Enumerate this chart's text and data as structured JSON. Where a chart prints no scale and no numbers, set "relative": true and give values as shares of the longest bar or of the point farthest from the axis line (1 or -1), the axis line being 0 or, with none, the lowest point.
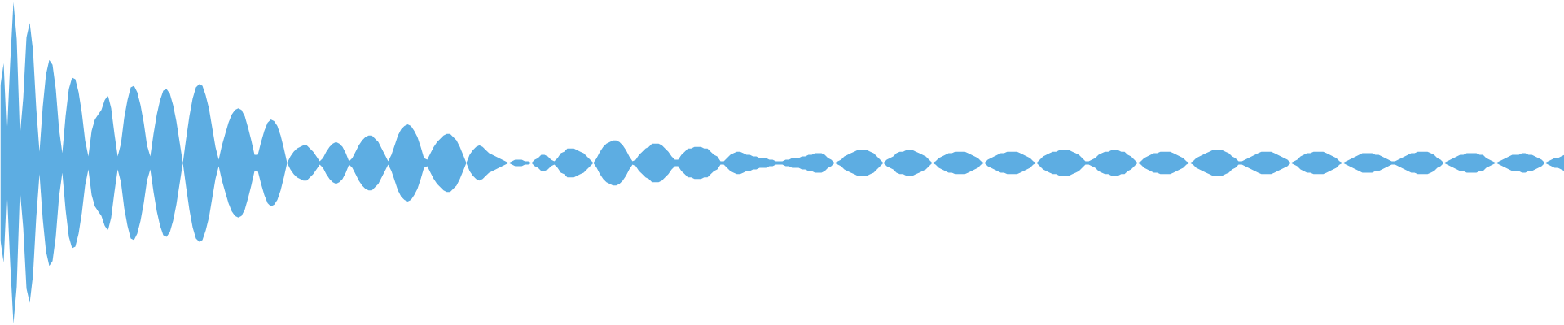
{
  "chart_data": {
    "type": "area",
    "relative": true,
    "ref_lines": [
      {
        "axis": "y",
        "value": 0,
        "color": "#5dade2"
      }
    ],
    "categories": [
      null,
      null,
      null,
      null,
      null,
      null,
      null,
      null,
      null,
      null,
      null,
      null,
      null,
      null,
      null,
      null,
      null,
      null,
      null,
      null,
      null,
      null,
      null,
      null,
      null,
      null,
      null,
      null,
      null,
      null,
      null,
      null,
      null,
      null,
      null,
      null,
      null,
      null,
      null,
      null,
      null,
      null,
      null,
      null,
      null,
      null,
      null,
      null,
      null,
      null,
      null,
      null,
      null,
      null,
      null,
      null,
      null,
      null,
      null,
      null,
      null,
      null,
      null,
      null,
      null,
      null,
      null,
      null,
      null,
      null,
      null,
      null,
      null,
      null,
      null,
      null,
      null,
      null,
      null,
      null,
      null,
      null,
      null,
      null,
      null,
      null,
      null,
      null,
      null,
      null,
      null,
      null,
      null,
      null,
      null,
      null,
      null,
      null,
      null,
      null,
      null,
      null,
      null,
      null,
      null,
      null,
      null,
      null,
      null,
      null,
      null,
      null,
      null,
      null,
      null,
      null,
      null,
      null,
      null,
      null,
      null,
      null,
      null,
      null,
      null,
      null,
      null,
      null,
      null,
      null,
      null,
      null,
      null,
      null,
      null,
      null,
      null,
      null,
      null,
      null,
      null,
      null,
      null,
      null,
      null,
      null,
      null,
      null,
      null,
      null,
      null,
      null,
      null,
      null,
      null,
      null,
      null,
      null,
      null,
      null,
      null,
      null,
      null,
      null,
      null,
      null,
      null,
      null,
      null,
      null,
      null,
      null,
      null,
      null,
      null,
      null,
      null,
      null,
      null,
      null,
      null,
      null,
      null,
      null,
      null,
      null,
      null,
      null,
      null,
      null,
      null,
      null,
      null,
      null,
      null,
      null,
      null,
      null,
      null,
      null,
      null,
      null,
      null,
      null,
      null,
      null,
      null,
      null,
      null,
      null,
      null,
      null,
      null,
      null,
      null,
      null,
      null,
      null,
      null,
      null,
      null,
      null,
      null,
      null,
      null,
      null,
      null,
      null,
      null,
      null,
      null,
      null,
      null,
      null,
      null,
      null,
      null,
      null,
      null,
      null,
      null,
      null,
      null,
      null,
      null,
      null,
      null,
      null,
      null,
      null,
      null,
      null,
      null,
      null,
      null,
      null,
      null,
      null,
      null,
      null,
      null,
      null,
      null,
      null,
      null,
      null,
      null,
      null,
      null,
      null,
      null,
      null,
      null,
      null,
      null,
      null,
      null,
      null,
      null,
      null,
      null,
      null,
      null,
      null,
      null,
      null,
      null,
      null,
      null,
      null,
      null,
      null,
      null,
      null,
      null,
      null,
      null,
      null,
      null,
      null,
      null,
      null,
      null,
      null,
      null,
      null,
      null,
      null,
      null,
      null,
      null,
      null,
      null,
      null,
      null,
      null,
      null,
      null,
      null,
      null,
      null,
      null,
      null,
      null,
      null,
      null,
      null,
      null,
      null,
      null,
      null,
      null,
      null,
      null,
      null,
      null,
      null,
      null,
      null,
      null,
      null,
      null,
      null,
      null,
      null,
      null,
      null,
      null,
      null,
      null,
      null,
      null,
      null,
      null,
      null,
      null,
      null,
      null,
      null,
      null,
      null,
      null,
      null,
      null,
      null,
      null,
      null,
      null,
      null,
      null,
      null,
      null,
      null,
      null,
      null,
      null,
      null,
      null,
      null,
      null,
      null,
      null,
      null,
      null,
      null,
      null,
      null,
      null,
      null,
      null,
      null,
      null,
      null,
      null,
      null,
      null,
      null,
      null,
      null,
      null,
      null,
      null,
      null,
      null,
      null,
      null,
      null,
      null,
      null,
      null,
      null,
      null,
      null,
      null,
      null,
      null,
      null,
      null,
      null,
      null,
      null,
      null,
      null,
      null,
      null,
      null,
      null,
      null,
      null,
      null,
      null,
      null,
      null,
      null,
      null,
      null,
      null,
      null,
      null,
      null,
      null,
      null,
      null,
      null,
      null,
      null,
      null,
      null,
      null,
      null,
      null,
      null,
      null,
      null,
      null,
      null,
      null,
      null,
      null,
      null,
      null,
      null,
      null,
      null,
      null,
      null,
      null,
      null,
      null,
      null,
      null,
      null,
      null,
      null,
      null,
      null,
      null,
      null,
      null,
      null,
      null
    ],
    "series": [
      {
        "color": "#5dade2",
        "values": [
          0.48,
          0.62,
          0.17,
          0.62,
          1.0,
          0.77,
          0.17,
          0.4,
          0.78,
          0.87,
          0.7,
          0.34,
          0.07,
          0.35,
          0.55,
          0.64,
          0.61,
          0.46,
          0.21,
          0.06,
          0.29,
          0.46,
          0.53,
          0.52,
          0.44,
          0.31,
          0.14,
          0.04,
          0.2,
          0.27,
          0.3,
          0.33,
          0.39,
          0.42,
          0.34,
          0.18,
          0.04,
          0.12,
          0.28,
          0.39,
          0.47,
          0.48,
          0.44,
          0.36,
          0.25,
          0.11,
          0.04,
          0.18,
          0.3,
          0.39,
          0.45,
          0.46,
          0.43,
          0.36,
          0.26,
          0.13,
          0.0,
          0.15,
          0.29,
          0.4,
          0.47,
          0.49,
          0.48,
          0.42,
          0.34,
          0.22,
          0.1,
          0.02,
          0.11,
          0.18,
          0.25,
          0.3,
          0.33,
          0.34,
          0.33,
          0.29,
          0.22,
          0.14,
          0.05,
          0.05,
          0.13,
          0.2,
          0.25,
          0.27,
          0.26,
          0.23,
          0.17,
          0.09,
          0.0,
          0.04,
          0.07,
          0.09,
          0.1,
          0.11,
          0.11,
          0.09,
          0.07,
          0.04,
          0.01,
          0.03,
          0.07,
          0.1,
          0.12,
          0.13,
          0.12,
          0.1,
          0.06,
          0.01,
          0.03,
          0.07,
          0.11,
          0.14,
          0.16,
          0.17,
          0.17,
          0.15,
          0.13,
          0.09,
          0.05,
          0.01,
          0.05,
          0.11,
          0.17,
          0.21,
          0.23,
          0.24,
          0.23,
          0.2,
          0.16,
          0.1,
          0.03,
          0.02,
          0.06,
          0.1,
          0.13,
          0.15,
          0.17,
          0.18,
          0.18,
          0.16,
          0.14,
          0.1,
          0.05,
          0.0,
          0.05,
          0.08,
          0.1,
          0.11,
          0.1,
          0.08,
          0.06,
          0.05,
          0.04,
          0.03,
          0.02,
          0.01,
          0.0,
          0.01,
          0.02,
          0.02,
          0.02,
          0.01,
          0.01,
          0.0,
          0.02,
          0.03,
          0.05,
          0.05,
          0.04,
          0.02,
          0.01,
          0.03,
          0.06,
          0.07,
          0.09,
          0.09,
          0.09,
          0.08,
          0.07,
          0.06,
          0.04,
          0.02,
          0.0,
          0.03,
          0.07,
          0.1,
          0.12,
          0.13,
          0.14,
          0.14,
          0.13,
          0.11,
          0.08,
          0.04,
          0.01,
          0.02,
          0.05,
          0.07,
          0.09,
          0.1,
          0.12,
          0.12,
          0.12,
          0.11,
          0.09,
          0.07,
          0.04,
          0.02,
          0.02,
          0.05,
          0.07,
          0.09,
          0.09,
          0.1,
          0.1,
          0.1,
          0.09,
          0.09,
          0.07,
          0.05,
          0.04,
          0.01,
          0.01,
          0.03,
          0.05,
          0.06,
          0.07,
          0.07,
          0.06,
          0.05,
          0.05,
          0.04,
          0.04,
          0.03,
          0.03,
          0.03,
          0.02,
          0.02,
          0.01,
          0.01,
          0.01,
          0.02,
          0.02,
          0.03,
          0.03,
          0.03,
          0.04,
          0.04,
          0.05,
          0.05,
          0.06,
          0.06,
          0.06,
          0.05,
          0.03,
          0.02,
          0.0,
          0.01,
          0.02,
          0.04,
          0.05,
          0.06,
          0.07,
          0.08,
          0.08,
          0.08,
          0.08,
          0.07,
          0.06,
          0.04,
          0.02,
          0.0,
          0.02,
          0.03,
          0.04,
          0.06,
          0.07,
          0.07,
          0.08,
          0.08,
          0.08,
          0.07,
          0.06,
          0.05,
          0.04,
          0.02,
          0.0,
          0.01,
          0.03,
          0.04,
          0.05,
          0.06,
          0.06,
          0.07,
          0.07,
          0.07,
          0.07,
          0.06,
          0.05,
          0.04,
          0.03,
          0.01,
          0.0,
          0.02,
          0.03,
          0.04,
          0.05,
          0.06,
          0.06,
          0.07,
          0.07,
          0.07,
          0.07,
          0.06,
          0.05,
          0.04,
          0.03,
          0.01,
          0.0,
          0.02,
          0.04,
          0.05,
          0.06,
          0.07,
          0.07,
          0.08,
          0.08,
          0.08,
          0.08,
          0.07,
          0.06,
          0.05,
          0.03,
          0.01,
          0.01,
          0.02,
          0.03,
          0.05,
          0.06,
          0.07,
          0.07,
          0.08,
          0.08,
          0.08,
          0.07,
          0.07,
          0.05,
          0.04,
          0.02,
          0.0,
          0.01,
          0.03,
          0.04,
          0.05,
          0.06,
          0.06,
          0.07,
          0.07,
          0.07,
          0.07,
          0.06,
          0.05,
          0.04,
          0.03,
          0.01,
          0.0,
          0.01,
          0.03,
          0.04,
          0.05,
          0.06,
          0.07,
          0.08,
          0.08,
          0.08,
          0.08,
          0.07,
          0.06,
          0.04,
          0.03,
          0.01,
          0.01,
          0.02,
          0.03,
          0.04,
          0.05,
          0.06,
          0.07,
          0.07,
          0.07,
          0.07,
          0.06,
          0.05,
          0.04,
          0.03,
          0.02,
          0.0,
          0.01,
          0.02,
          0.04,
          0.05,
          0.06,
          0.06,
          0.07,
          0.07,
          0.07,
          0.07,
          0.06,
          0.05,
          0.04,
          0.03,
          0.01,
          0.0,
          0.01,
          0.02,
          0.03,
          0.04,
          0.05,
          0.06,
          0.06,
          0.06,
          0.06,
          0.05,
          0.05,
          0.04,
          0.03,
          0.02,
          0.01,
          0.01,
          0.02,
          0.03,
          0.04,
          0.05,
          0.06,
          0.06,
          0.07,
          0.07,
          0.07,
          0.07,
          0.06,
          0.05,
          0.03,
          0.02,
          0.0,
          0.01,
          0.02,
          0.03,
          0.04,
          0.05,
          0.05,
          0.06,
          0.06,
          0.06,
          0.06,
          0.05,
          0.05,
          0.03,
          0.02,
          0.01,
          0.0,
          0.01,
          0.02,
          0.03,
          0.04,
          0.05,
          0.05,
          0.05,
          0.06,
          0.06,
          0.05,
          0.05,
          0.04,
          0.03,
          0.02,
          0.0,
          0.01,
          0.02,
          0.03,
          0.03,
          0.04,
          0.05
        ]
      },
      {
        "color": "#5dade2",
        "values": [
          -0.48,
          -0.62,
          -0.17,
          -0.62,
          -1.0,
          -0.77,
          -0.17,
          -0.4,
          -0.78,
          -0.87,
          -0.7,
          -0.34,
          -0.07,
          -0.35,
          -0.55,
          -0.64,
          -0.61,
          -0.46,
          -0.21,
          -0.06,
          -0.29,
          -0.46,
          -0.53,
          -0.52,
          -0.44,
          -0.31,
          -0.14,
          -0.04,
          -0.2,
          -0.27,
          -0.3,
          -0.33,
          -0.39,
          -0.42,
          -0.34,
          -0.18,
          -0.04,
          -0.12,
          -0.28,
          -0.39,
          -0.47,
          -0.48,
          -0.44,
          -0.36,
          -0.25,
          -0.11,
          -0.04,
          -0.18,
          -0.3,
          -0.39,
          -0.45,
          -0.46,
          -0.43,
          -0.36,
          -0.26,
          -0.13,
          0.0,
          -0.15,
          -0.29,
          -0.4,
          -0.47,
          -0.49,
          -0.48,
          -0.42,
          -0.34,
          -0.22,
          -0.1,
          -0.02,
          -0.11,
          -0.18,
          -0.25,
          -0.3,
          -0.33,
          -0.34,
          -0.33,
          -0.29,
          -0.22,
          -0.14,
          -0.05,
          -0.05,
          -0.13,
          -0.2,
          -0.25,
          -0.27,
          -0.26,
          -0.23,
          -0.17,
          -0.09,
          0.0,
          -0.04,
          -0.07,
          -0.09,
          -0.1,
          -0.11,
          -0.11,
          -0.09,
          -0.07,
          -0.04,
          -0.01,
          -0.03,
          -0.07,
          -0.1,
          -0.12,
          -0.13,
          -0.12,
          -0.1,
          -0.06,
          -0.01,
          -0.03,
          -0.07,
          -0.11,
          -0.14,
          -0.16,
          -0.17,
          -0.17,
          -0.15,
          -0.13,
          -0.09,
          -0.05,
          -0.01,
          -0.05,
          -0.11,
          -0.17,
          -0.21,
          -0.23,
          -0.24,
          -0.23,
          -0.2,
          -0.16,
          -0.1,
          -0.03,
          -0.02,
          -0.06,
          -0.1,
          -0.13,
          -0.15,
          -0.17,
          -0.18,
          -0.18,
          -0.16,
          -0.14,
          -0.1,
          -0.05,
          0.0,
          -0.05,
          -0.08,
          -0.1,
          -0.11,
          -0.1,
          -0.08,
          -0.06,
          -0.05,
          -0.04,
          -0.03,
          -0.02,
          -0.01,
          0.0,
          -0.01,
          -0.02,
          -0.02,
          -0.02,
          -0.01,
          -0.01,
          0.0,
          -0.02,
          -0.03,
          -0.05,
          -0.05,
          -0.04,
          -0.02,
          -0.01,
          -0.03,
          -0.06,
          -0.07,
          -0.09,
          -0.09,
          -0.09,
          -0.08,
          -0.07,
          -0.06,
          -0.04,
          -0.02,
          0.0,
          -0.03,
          -0.07,
          -0.1,
          -0.12,
          -0.13,
          -0.14,
          -0.14,
          -0.13,
          -0.11,
          -0.08,
          -0.04,
          -0.01,
          -0.02,
          -0.05,
          -0.07,
          -0.09,
          -0.1,
          -0.12,
          -0.12,
          -0.12,
          -0.11,
          -0.09,
          -0.07,
          -0.04,
          -0.02,
          -0.02,
          -0.05,
          -0.07,
          -0.09,
          -0.09,
          -0.1,
          -0.1,
          -0.1,
          -0.09,
          -0.09,
          -0.07,
          -0.05,
          -0.04,
          -0.01,
          -0.01,
          -0.03,
          -0.05,
          -0.06,
          -0.07,
          -0.07,
          -0.06,
          -0.05,
          -0.05,
          -0.04,
          -0.04,
          -0.03,
          -0.03,
          -0.03,
          -0.02,
          -0.02,
          -0.01,
          -0.01,
          -0.01,
          -0.02,
          -0.02,
          -0.03,
          -0.03,
          -0.03,
          -0.04,
          -0.04,
          -0.05,
          -0.05,
          -0.06,
          -0.06,
          -0.06,
          -0.05,
          -0.03,
          -0.02,
          0.0,
          -0.01,
          -0.02,
          -0.04,
          -0.05,
          -0.06,
          -0.07,
          -0.08,
          -0.08,
          -0.08,
          -0.08,
          -0.07,
          -0.06,
          -0.04,
          -0.02,
          0.0,
          -0.02,
          -0.03,
          -0.04,
          -0.06,
          -0.07,
          -0.07,
          -0.08,
          -0.08,
          -0.08,
          -0.07,
          -0.06,
          -0.05,
          -0.04,
          -0.02,
          0.0,
          -0.01,
          -0.03,
          -0.04,
          -0.05,
          -0.06,
          -0.06,
          -0.07,
          -0.07,
          -0.07,
          -0.07,
          -0.06,
          -0.05,
          -0.04,
          -0.03,
          -0.01,
          0.0,
          -0.02,
          -0.03,
          -0.04,
          -0.05,
          -0.06,
          -0.06,
          -0.07,
          -0.07,
          -0.07,
          -0.07,
          -0.06,
          -0.05,
          -0.04,
          -0.03,
          -0.01,
          0.0,
          -0.02,
          -0.04,
          -0.05,
          -0.06,
          -0.07,
          -0.07,
          -0.08,
          -0.08,
          -0.08,
          -0.08,
          -0.07,
          -0.06,
          -0.05,
          -0.03,
          -0.01,
          -0.01,
          -0.02,
          -0.03,
          -0.05,
          -0.06,
          -0.07,
          -0.07,
          -0.08,
          -0.08,
          -0.08,
          -0.07,
          -0.07,
          -0.05,
          -0.04,
          -0.02,
          0.0,
          -0.01,
          -0.03,
          -0.04,
          -0.05,
          -0.06,
          -0.06,
          -0.07,
          -0.07,
          -0.07,
          -0.07,
          -0.06,
          -0.05,
          -0.04,
          -0.03,
          -0.01,
          0.0,
          -0.01,
          -0.03,
          -0.04,
          -0.05,
          -0.06,
          -0.07,
          -0.08,
          -0.08,
          -0.08,
          -0.08,
          -0.07,
          -0.06,
          -0.04,
          -0.03,
          -0.01,
          -0.01,
          -0.02,
          -0.03,
          -0.04,
          -0.05,
          -0.06,
          -0.07,
          -0.07,
          -0.07,
          -0.07,
          -0.06,
          -0.05,
          -0.04,
          -0.03,
          -0.02,
          0.0,
          -0.01,
          -0.02,
          -0.04,
          -0.05,
          -0.06,
          -0.06,
          -0.07,
          -0.07,
          -0.07,
          -0.07,
          -0.06,
          -0.05,
          -0.04,
          -0.03,
          -0.01,
          0.0,
          -0.01,
          -0.02,
          -0.03,
          -0.04,
          -0.05,
          -0.06,
          -0.06,
          -0.06,
          -0.06,
          -0.05,
          -0.05,
          -0.04,
          -0.03,
          -0.02,
          -0.01,
          -0.01,
          -0.02,
          -0.03,
          -0.04,
          -0.05,
          -0.06,
          -0.06,
          -0.07,
          -0.07,
          -0.07,
          -0.07,
          -0.06,
          -0.05,
          -0.03,
          -0.02,
          0.0,
          -0.01,
          -0.02,
          -0.03,
          -0.04,
          -0.05,
          -0.05,
          -0.06,
          -0.06,
          -0.06,
          -0.06,
          -0.05,
          -0.05,
          -0.03,
          -0.02,
          -0.01,
          0.0,
          -0.01,
          -0.02,
          -0.03,
          -0.04,
          -0.05,
          -0.05,
          -0.05,
          -0.06,
          -0.06,
          -0.05,
          -0.05,
          -0.04,
          -0.03,
          -0.02,
          0.0,
          -0.01,
          -0.02,
          -0.03,
          -0.03,
          -0.04,
          -0.05
        ]
      }
    ]
  }
}
